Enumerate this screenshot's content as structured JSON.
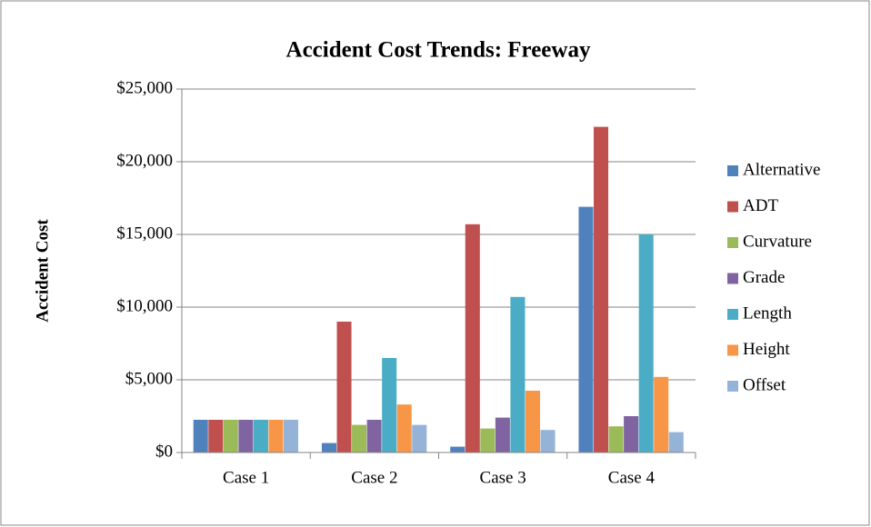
{
  "chart_data": {
    "type": "bar",
    "title": "Accident Cost Trends: Freeway",
    "ylabel": "Accident Cost",
    "categories": [
      "Case 1",
      "Case 2",
      "Case 3",
      "Case 4"
    ],
    "series": [
      {
        "name": "Alternative",
        "color": "#4F81BD",
        "values": [
          2250,
          650,
          400,
          16900
        ]
      },
      {
        "name": "ADT",
        "color": "#C0504D",
        "values": [
          2250,
          9000,
          15700,
          22400
        ]
      },
      {
        "name": "Curvature",
        "color": "#9BBB59",
        "values": [
          2250,
          1900,
          1650,
          1800
        ]
      },
      {
        "name": "Grade",
        "color": "#8064A2",
        "values": [
          2250,
          2250,
          2400,
          2500
        ]
      },
      {
        "name": "Length",
        "color": "#4BACC6",
        "values": [
          2250,
          6500,
          10700,
          15000
        ]
      },
      {
        "name": "Height",
        "color": "#F79646",
        "values": [
          2250,
          3300,
          4250,
          5200
        ]
      },
      {
        "name": "Offset",
        "color": "#95B3D7",
        "values": [
          2250,
          1900,
          1550,
          1400
        ]
      }
    ],
    "ylim": [
      0,
      25000
    ],
    "yticks": [
      {
        "value": 0,
        "label": "$0"
      },
      {
        "value": 5000,
        "label": "$5,000"
      },
      {
        "value": 10000,
        "label": "$10,000"
      },
      {
        "value": 15000,
        "label": "$15,000"
      },
      {
        "value": 20000,
        "label": "$20,000"
      },
      {
        "value": 25000,
        "label": "$25,000"
      }
    ],
    "grid": true,
    "legend": "right"
  }
}
